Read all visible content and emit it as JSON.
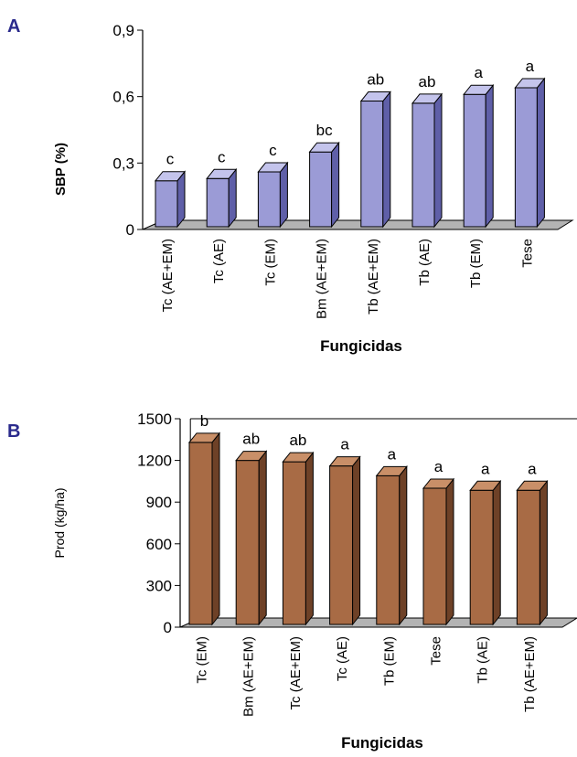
{
  "chart_data": [
    {
      "panel": "A",
      "type": "bar",
      "xlabel": "Fungicidas",
      "ylabel": "SBP (%)",
      "ylim": [
        0,
        0.9
      ],
      "yticks": [
        "0",
        "0,3",
        "0,6",
        "0,9"
      ],
      "categories": [
        "Tc (AE+EM)",
        "Tc (AE)",
        "Tc (EM)",
        "Bm (AE+EM)",
        "Tb (AE+EM)",
        "Tb (AE)",
        "Tb (EM)",
        "Tese"
      ],
      "values": [
        0.22,
        0.23,
        0.26,
        0.35,
        0.58,
        0.57,
        0.61,
        0.64
      ],
      "labels": [
        "c",
        "c",
        "c",
        "bc",
        "ab",
        "ab",
        "a",
        "a"
      ],
      "colors": {
        "front": "#9b9bd6",
        "side": "#5f5fa8",
        "top": "#c4c4ec",
        "floor": "#b3b3b3"
      }
    },
    {
      "panel": "B",
      "type": "bar",
      "xlabel": "Fungicidas",
      "ylabel": "Prod (kg/ha)",
      "ylim": [
        0,
        1500
      ],
      "yticks": [
        "0",
        "300",
        "600",
        "900",
        "1200",
        "1500"
      ],
      "categories": [
        "Tc (EM)",
        "Bm (AE+EM)",
        "Tc (AE+EM)",
        "Tc (AE)",
        "Tb (EM)",
        "Tese",
        "Tb (AE)",
        "Tb (AE+EM)"
      ],
      "values": [
        1330,
        1200,
        1190,
        1160,
        1090,
        1000,
        985,
        985
      ],
      "labels": [
        "b",
        "ab",
        "ab",
        "a",
        "a",
        "a",
        "a",
        "a"
      ],
      "colors": {
        "front": "#a86b45",
        "side": "#6e4127",
        "top": "#c98f68",
        "floor": "#b3b3b3"
      }
    }
  ]
}
